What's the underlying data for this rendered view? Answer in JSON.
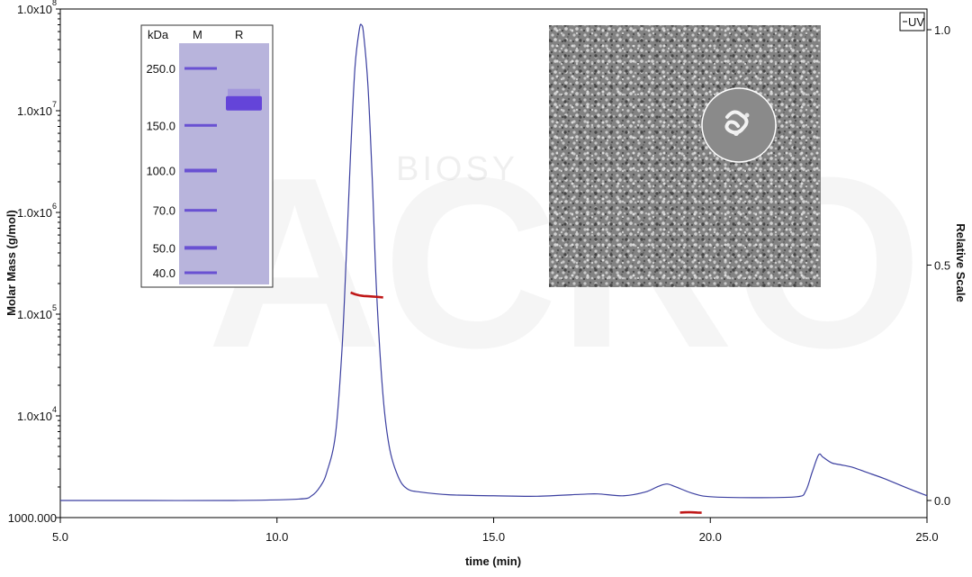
{
  "chart_data": {
    "type": "line",
    "xlabel": "time (min)",
    "ylabel": "Molar Mass (g/mol)",
    "y2label": "Relative Scale",
    "xlim": [
      5.0,
      25.0
    ],
    "x_ticks": [
      "5.0",
      "10.0",
      "15.0",
      "20.0",
      "25.0"
    ],
    "y_scale": "log",
    "ylim": [
      1000,
      100000000
    ],
    "y_ticks": [
      {
        "value": 1000,
        "base": "1000.000",
        "exp": ""
      },
      {
        "value": 10000,
        "base": "1.0x10",
        "exp": "4"
      },
      {
        "value": 100000,
        "base": "1.0x10",
        "exp": "5"
      },
      {
        "value": 1000000,
        "base": "1.0x10",
        "exp": "6"
      },
      {
        "value": 10000000,
        "base": "1.0x10",
        "exp": "7"
      },
      {
        "value": 100000000,
        "base": "1.0x10",
        "exp": "8"
      }
    ],
    "y2lim": [
      0.0,
      1.0
    ],
    "y2_ticks": [
      "0.0",
      "0.5",
      "1.0"
    ],
    "legend": {
      "position": "top-right",
      "entries": [
        "UV"
      ]
    },
    "series": [
      {
        "name": "UV",
        "axis": "relative",
        "color": "#3b3fa0",
        "x": [
          5.0,
          7.0,
          9.0,
          10.5,
          10.8,
          11.0,
          11.15,
          11.35,
          11.5,
          11.6,
          11.7,
          11.8,
          11.9,
          11.95,
          12.0,
          12.1,
          12.2,
          12.3,
          12.45,
          12.6,
          12.8,
          13.0,
          13.3,
          14.0,
          15.0,
          16.0,
          17.0,
          17.4,
          18.0,
          18.5,
          18.8,
          19.0,
          19.2,
          19.6,
          20.0,
          21.0,
          22.0,
          22.2,
          22.35,
          22.5,
          22.6,
          22.8,
          23.0,
          23.3,
          23.6,
          24.0,
          24.5,
          25.0
        ],
        "y": [
          0.0,
          0.0,
          0.0,
          0.003,
          0.01,
          0.03,
          0.06,
          0.14,
          0.32,
          0.52,
          0.74,
          0.92,
          1.0,
          1.01,
          0.99,
          0.88,
          0.68,
          0.44,
          0.22,
          0.11,
          0.05,
          0.025,
          0.018,
          0.012,
          0.01,
          0.009,
          0.013,
          0.014,
          0.01,
          0.018,
          0.03,
          0.035,
          0.029,
          0.015,
          0.008,
          0.006,
          0.008,
          0.02,
          0.06,
          0.097,
          0.092,
          0.08,
          0.076,
          0.07,
          0.06,
          0.047,
          0.028,
          0.01
        ]
      },
      {
        "name": "Molar Mass",
        "axis": "molar_mass",
        "color": "#c01818",
        "x": [
          11.7,
          11.8,
          11.9,
          12.0,
          12.1,
          12.2,
          12.3,
          12.45
        ],
        "y": [
          163000,
          157000,
          153000,
          151000,
          150000,
          149000,
          148000,
          146000
        ]
      },
      {
        "name": "",
        "axis": "molar_mass",
        "color": "#c01818",
        "x": [
          19.3,
          19.4,
          19.5,
          19.6,
          19.7,
          19.8
        ],
        "y": [
          1120,
          1125,
          1130,
          1125,
          1120,
          1118
        ]
      }
    ]
  },
  "gel": {
    "header": {
      "unit": "kDa",
      "lane_m": "M",
      "lane_r": "R"
    },
    "markers": [
      "250.0",
      "150.0",
      "100.0",
      "70.0",
      "50.0",
      "40.0"
    ],
    "marker_kda": [
      250,
      150,
      100,
      70,
      50,
      40
    ],
    "sample_band_kda": 180
  },
  "watermark": {
    "line1": "BIOSY",
    "line2": "ACRO"
  }
}
